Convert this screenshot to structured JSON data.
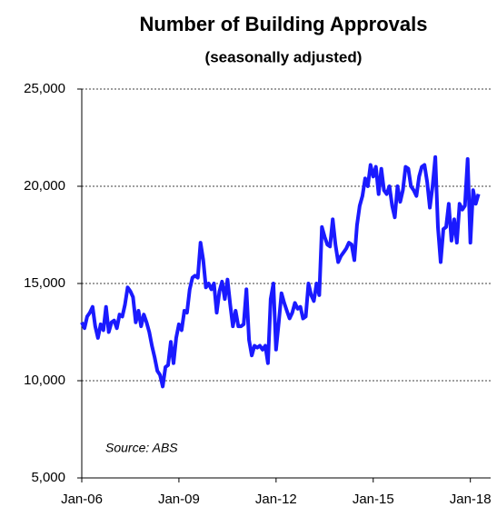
{
  "chart_data": {
    "type": "line",
    "title": "Number of Building Approvals",
    "subtitle": "(seasonally adjusted)",
    "annotation": "Source: ABS",
    "categories": [
      "Jan-06",
      null,
      null,
      null,
      null,
      null,
      null,
      null,
      null,
      null,
      null,
      null,
      null,
      null,
      null,
      null,
      null,
      null,
      null,
      null,
      null,
      null,
      null,
      null,
      null,
      null,
      null,
      null,
      null,
      null,
      null,
      null,
      null,
      null,
      null,
      null,
      "Jan-09",
      null,
      null,
      null,
      null,
      null,
      null,
      null,
      null,
      null,
      null,
      null,
      null,
      null,
      null,
      null,
      null,
      null,
      null,
      null,
      null,
      null,
      null,
      null,
      null,
      null,
      null,
      null,
      null,
      null,
      null,
      null,
      null,
      null,
      null,
      null,
      "Jan-12",
      null,
      null,
      null,
      null,
      null,
      null,
      null,
      null,
      null,
      null,
      null,
      null,
      null,
      null,
      null,
      null,
      null,
      null,
      null,
      null,
      null,
      null,
      null,
      null,
      null,
      null,
      null,
      null,
      null,
      null,
      null,
      null,
      null,
      null,
      null,
      "Jan-15",
      null,
      null,
      null,
      null,
      null,
      null,
      null,
      null,
      null,
      null,
      null,
      null,
      null,
      null,
      null,
      null,
      null,
      null,
      null,
      null,
      null,
      null,
      null,
      null,
      null,
      null,
      null,
      null,
      null,
      null,
      null,
      null,
      null,
      null,
      null,
      "Jan-18",
      null,
      null,
      null
    ],
    "series": [
      {
        "name": "Building approvals",
        "color": "#1a1aff",
        "values": [
          13000,
          12700,
          13300,
          13500,
          13800,
          12800,
          12200,
          12900,
          12600,
          13800,
          12500,
          13000,
          13100,
          12700,
          13400,
          13300,
          13900,
          14800,
          14600,
          14300,
          13000,
          13600,
          12800,
          13400,
          13000,
          12500,
          11800,
          11200,
          10500,
          10300,
          9700,
          10700,
          10800,
          12000,
          10900,
          12200,
          12900,
          12600,
          13600,
          13500,
          14700,
          15300,
          15400,
          15300,
          17100,
          16200,
          14800,
          15000,
          14700,
          15000,
          13500,
          14600,
          15100,
          14200,
          15200,
          13900,
          12800,
          13600,
          12800,
          12800,
          12900,
          14700,
          12100,
          11300,
          11800,
          11700,
          11800,
          11600,
          11800,
          10900,
          14200,
          15000,
          11600,
          13000,
          14500,
          14000,
          13600,
          13200,
          13500,
          14000,
          13700,
          13800,
          13200,
          13300,
          15000,
          14400,
          14100,
          15000,
          14400,
          17900,
          17400,
          17000,
          16900,
          18300,
          17000,
          16100,
          16400,
          16600,
          16800,
          17100,
          17000,
          16200,
          18000,
          19000,
          19500,
          20400,
          20000,
          21100,
          20500,
          21000,
          19600,
          20900,
          19800,
          19600,
          20000,
          19000,
          18400,
          20000,
          19200,
          19800,
          21000,
          20900,
          20000,
          19800,
          19500,
          20500,
          21000,
          21100,
          20200,
          18900,
          20000,
          21500,
          17900,
          16100,
          17800,
          17900,
          19100,
          17200,
          18300,
          17100,
          19100,
          18800,
          19000,
          21400,
          17100,
          19800,
          19100,
          19600
        ]
      }
    ],
    "ylim": [
      5000,
      25000
    ],
    "yticks": [
      {
        "value": 5000,
        "label": "5,000"
      },
      {
        "value": 10000,
        "label": "10,000"
      },
      {
        "value": 15000,
        "label": "15,000"
      },
      {
        "value": 20000,
        "label": "20,000"
      },
      {
        "value": 25000,
        "label": "25,000"
      }
    ],
    "grid": true
  }
}
